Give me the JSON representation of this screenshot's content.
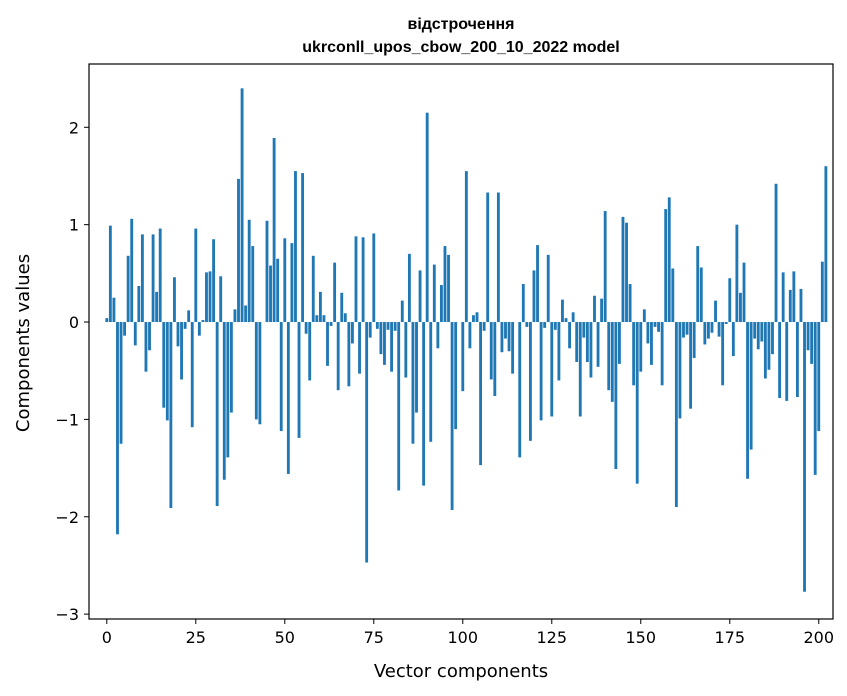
{
  "chart_data": {
    "type": "bar",
    "title_line1": "відстрочення",
    "title_line2": "ukrconll_upos_cbow_200_10_2022 model",
    "xlabel": "Vector components",
    "ylabel": "Components values",
    "xlim": [
      -5,
      204
    ],
    "ylim": [
      -3.05,
      2.65
    ],
    "xticks": [
      0,
      25,
      50,
      75,
      100,
      125,
      150,
      175,
      200
    ],
    "yticks": [
      -3,
      -2,
      -1,
      0,
      1,
      2
    ],
    "ytick_labels": [
      "−3",
      "−2",
      "−1",
      "0",
      "1",
      "2"
    ],
    "bar_color": "#1f77b4",
    "values": [
      0.04,
      0.99,
      0.25,
      -2.18,
      -1.25,
      -0.14,
      0.68,
      1.06,
      -0.24,
      0.37,
      0.9,
      -0.51,
      -0.29,
      0.9,
      0.31,
      0.96,
      -0.88,
      -1.01,
      -1.91,
      0.46,
      -0.25,
      -0.59,
      -0.07,
      0.12,
      -1.08,
      0.96,
      -0.14,
      0.02,
      0.51,
      0.52,
      0.85,
      -1.89,
      0.47,
      -1.62,
      -1.39,
      -0.93,
      0.13,
      1.47,
      2.4,
      0.17,
      1.05,
      0.78,
      -1.0,
      -1.05,
      0.0,
      1.04,
      0.58,
      1.89,
      0.65,
      -1.12,
      0.86,
      -1.56,
      0.81,
      1.55,
      -1.19,
      1.53,
      -0.12,
      -0.6,
      0.68,
      0.07,
      0.31,
      0.07,
      -0.45,
      -0.04,
      0.61,
      -0.7,
      0.3,
      0.09,
      -0.66,
      -0.22,
      0.88,
      -0.53,
      0.87,
      -2.47,
      -0.16,
      0.91,
      -0.07,
      -0.33,
      -0.44,
      -0.08,
      -0.51,
      -0.09,
      -1.73,
      0.22,
      -0.57,
      0.7,
      -1.25,
      -0.93,
      0.53,
      -1.68,
      2.15,
      -1.23,
      0.59,
      -0.27,
      0.38,
      0.78,
      0.69,
      -1.93,
      -1.1,
      0.0,
      -0.71,
      1.55,
      -0.27,
      0.07,
      0.1,
      -1.47,
      -0.09,
      1.33,
      -0.59,
      -0.76,
      1.33,
      -0.31,
      -0.17,
      -0.3,
      -0.53,
      0.0,
      -1.39,
      0.39,
      -0.05,
      -1.22,
      0.53,
      0.79,
      -1.01,
      -0.06,
      0.69,
      -0.97,
      -0.08,
      -0.6,
      0.23,
      0.04,
      -0.27,
      0.1,
      -0.41,
      -0.97,
      -0.16,
      -0.41,
      -0.57,
      0.27,
      -0.46,
      0.24,
      1.14,
      -0.7,
      -0.82,
      -1.51,
      -0.43,
      1.08,
      1.02,
      0.39,
      -0.65,
      -1.66,
      -0.51,
      0.13,
      -0.22,
      -0.44,
      -0.05,
      -0.1,
      -0.65,
      1.16,
      1.28,
      0.55,
      -1.9,
      -0.99,
      -0.16,
      -0.13,
      -0.89,
      -0.37,
      0.78,
      0.56,
      -0.23,
      -0.17,
      -0.11,
      0.22,
      -0.15,
      -0.65,
      -0.02,
      0.45,
      -0.35,
      1.0,
      0.3,
      0.61,
      -1.61,
      -1.31,
      -0.17,
      -0.28,
      -0.2,
      -0.58,
      -0.49,
      -0.33,
      1.42,
      -0.78,
      0.51,
      -0.81,
      0.33,
      0.52,
      -0.77,
      0.34,
      -2.77,
      -0.29,
      -0.43,
      -1.57,
      -1.12,
      0.62,
      1.6
    ]
  }
}
